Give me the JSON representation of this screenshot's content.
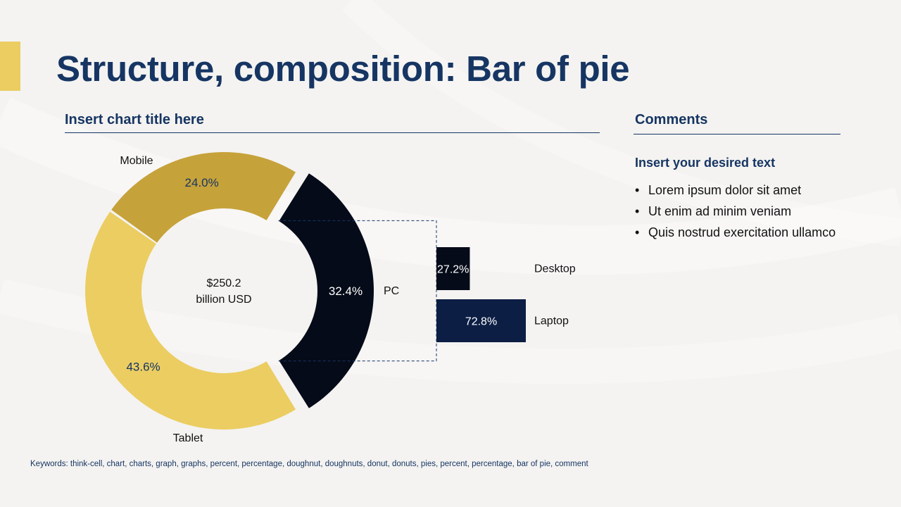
{
  "title": "Structure, composition: Bar of pie",
  "chart_title": "Insert chart title here",
  "comments": {
    "heading": "Comments",
    "subheading": "Insert your desired text",
    "bullets": [
      "Lorem ipsum dolor sit amet",
      "Ut enim ad minim veniam",
      "Quis nostrud exercitation ullamco"
    ]
  },
  "keywords": "Keywords: think-cell, chart, charts, graph, graphs, percent, percentage, doughnut, doughnuts, donut, donuts, pies, percent, percentage, bar of pie, comment",
  "colors": {
    "accent": "#ebcd62",
    "title": "#163563",
    "mobile": "#ebcd62",
    "tablet": "#c6a23a",
    "pc": "#050b18",
    "desktop": "#050b18",
    "laptop": "#0c1e44"
  },
  "chart_data": {
    "type": "pie",
    "variant": "bar of pie (doughnut)",
    "center_label": [
      "$250.2",
      "billion USD"
    ],
    "slices": [
      {
        "name": "Mobile",
        "value": 43.6,
        "label": "43.6%"
      },
      {
        "name": "Tablet",
        "value": 24.0,
        "label": "24.0%"
      },
      {
        "name": "PC",
        "value": 32.4,
        "label": "32.4%"
      }
    ],
    "breakout": {
      "of": "PC",
      "type": "bar",
      "categories": [
        "Desktop",
        "Laptop"
      ],
      "values": [
        27.2,
        72.8
      ],
      "labels": [
        "27.2%",
        "72.8%"
      ]
    }
  }
}
